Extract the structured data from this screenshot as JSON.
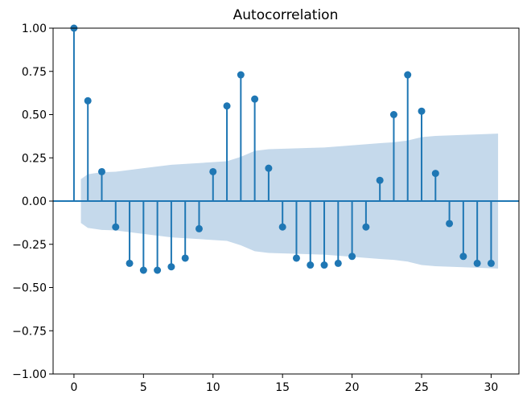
{
  "chart_data": {
    "type": "stem",
    "title": "Autocorrelation",
    "xlabel": "",
    "ylabel": "",
    "xlim": [
      -1.5,
      32
    ],
    "ylim": [
      -1.0,
      1.0
    ],
    "xticks": [
      "0",
      "5",
      "10",
      "15",
      "20",
      "25",
      "30"
    ],
    "xtick_values": [
      0,
      5,
      10,
      15,
      20,
      25,
      30
    ],
    "yticks": [
      "−1.00",
      "−0.75",
      "−0.50",
      "−0.25",
      "0.00",
      "0.25",
      "0.50",
      "0.75",
      "1.00"
    ],
    "ytick_values": [
      -1.0,
      -0.75,
      -0.5,
      -0.25,
      0,
      0.25,
      0.5,
      0.75,
      1.0
    ],
    "lags": [
      0,
      1,
      2,
      3,
      4,
      5,
      6,
      7,
      8,
      9,
      10,
      11,
      12,
      13,
      14,
      15,
      16,
      17,
      18,
      19,
      20,
      21,
      22,
      23,
      24,
      25,
      26,
      27,
      28,
      29,
      30
    ],
    "values": [
      1.0,
      0.58,
      0.17,
      -0.15,
      -0.36,
      -0.4,
      -0.4,
      -0.38,
      -0.33,
      -0.16,
      0.17,
      0.55,
      0.73,
      0.59,
      0.19,
      -0.15,
      -0.33,
      -0.37,
      -0.37,
      -0.36,
      -0.32,
      -0.15,
      0.12,
      0.5,
      0.73,
      0.52,
      0.16,
      -0.13,
      -0.32,
      -0.36,
      -0.36
    ],
    "confidence_band": {
      "lags": [
        0.5,
        1,
        2,
        3,
        5,
        7,
        9,
        11,
        12,
        13,
        14,
        18,
        22,
        23,
        24,
        25,
        26,
        30.5
      ],
      "upper": [
        0.127,
        0.155,
        0.167,
        0.17,
        0.19,
        0.21,
        0.22,
        0.23,
        0.256,
        0.29,
        0.3,
        0.31,
        0.335,
        0.34,
        0.35,
        0.37,
        0.377,
        0.39
      ]
    },
    "colors": {
      "stem": "#1f77b4",
      "band": "#c5d9eb"
    }
  }
}
